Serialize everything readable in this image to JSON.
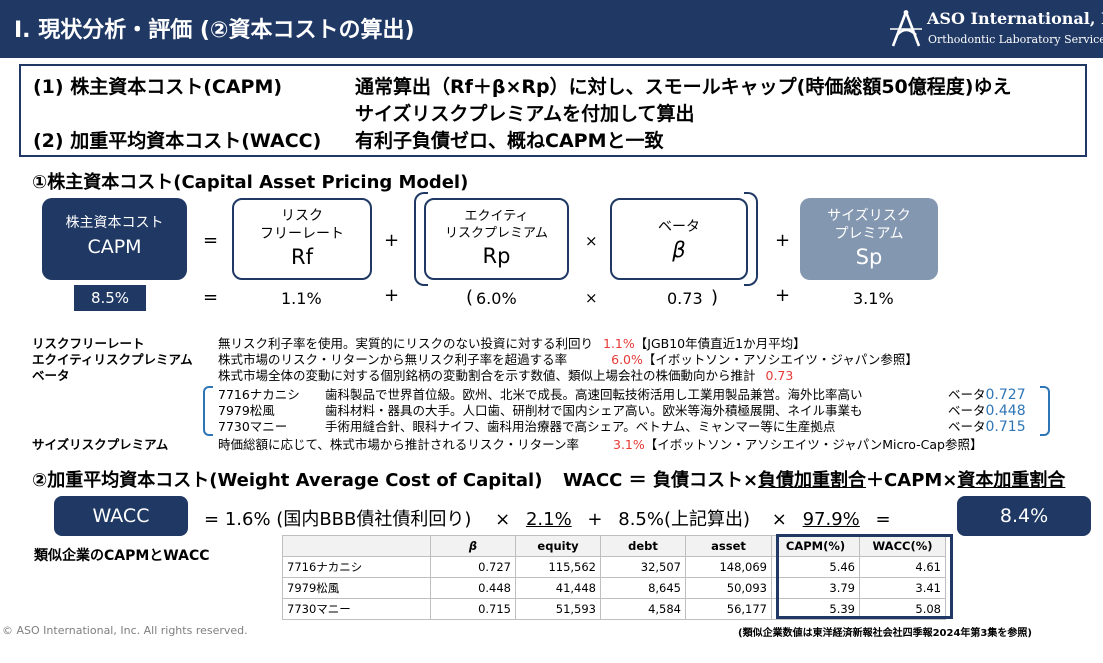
{
  "header": {
    "title": "Ⅰ. 現状分析・評価 (②資本コストの算出)",
    "logo_name": "ASO International, Inc.",
    "logo_sub": "Orthodontic Laboratory Services"
  },
  "summary": {
    "line1_label": "(1) 株主資本コスト(CAPM)",
    "line1_text": "通常算出（Rf＋β×Rp）に対し、スモールキャップ(時価総額50億程度)ゆえ",
    "line1_cont": "サイズリスクプレミアムを付加して算出",
    "line2_label": "(2) 加重平均資本コスト(WACC)",
    "line2_text": "有利子負債ゼロ、概ねCAPMと一致"
  },
  "capm": {
    "section_title": "①株主資本コスト(Capital Asset Pricing Model)",
    "box_capm_line1": "株主資本コスト",
    "box_capm_line2": "CAPM",
    "box_rf_line1": "リスク",
    "box_rf_line2": "フリーレート",
    "box_rf_symbol": "Rf",
    "box_rp_line1": "エクイティ",
    "box_rp_line2": "リスクプレミアム",
    "box_rp_symbol": "Rp",
    "box_beta_line1": "ベータ",
    "box_beta_symbol": "β",
    "box_sp_line1": "サイズリスク",
    "box_sp_line2": "プレミアム",
    "box_sp_symbol": "Sp",
    "op_eq": "=",
    "op_plus": "+",
    "op_times": "×",
    "val_capm": "8.5%",
    "val_rf": "1.1%",
    "val_rp": "6.0%",
    "val_beta": "0.73",
    "val_sp": "3.1%"
  },
  "definitions": {
    "rf_term": "リスクフリーレート",
    "rf_desc": "無リスク利子率を使用。実質的にリスクのない投資に対する利回り",
    "rf_value": "1.1%",
    "rf_source": "【JGB10年債直近1か月平均】",
    "rp_term": "エクイティリスクプレミアム",
    "rp_desc": "株式市場のリスク・リターンから無リスク利子率を超過する率",
    "rp_value": "6.0%",
    "rp_source": "【イボットソン・アソシエイツ・ジャパン参照】",
    "beta_term": "ベータ",
    "beta_desc": "株式市場全体の変動に対する個別銘柄の変動割合を示す数値、類似上場会社の株価動向から推計",
    "beta_value": "0.73",
    "peers": [
      {
        "name": "7716ナカニシ",
        "desc": "歯科製品で世界首位級。欧州、北米で成長。高速回転技術活用し工業用製品兼営。海外比率高い",
        "beta_label": "ベータ",
        "beta": "0.727"
      },
      {
        "name": "7979松風",
        "desc": "歯科材料・器具の大手。人口歯、研削材で国内シェア高い。欧米等海外積極展開、ネイル事業も",
        "beta_label": "ベータ",
        "beta": "0.448"
      },
      {
        "name": "7730マニー",
        "desc": "手術用縫合針、眼科ナイフ、歯科用治療器で高シェア。ベトナム、ミャンマー等に生産拠点",
        "beta_label": "ベータ",
        "beta": "0.715"
      }
    ],
    "sp_term": "サイズリスクプレミアム",
    "sp_desc": "時価総額に応じて、株式市場から推計されるリスク・リターン率",
    "sp_value": "3.1%",
    "sp_source": "【イボットソン・アソシエイツ・ジャパンMicro-Cap参照】"
  },
  "wacc": {
    "section_title": "②加重平均資本コスト(Weight Average Cost of Capital)",
    "formula_label": "WACC ＝",
    "formula_debt_cost": "負債コスト",
    "formula_x1": "×",
    "formula_debt_weight": "負債加重割合",
    "formula_plus": "＋",
    "formula_capm": "CAPM",
    "formula_x2": "×",
    "formula_equity_weight": "資本加重割合",
    "pill_label": "WACC",
    "eq1": "=",
    "debt_cost": "1.6%",
    "debt_note": "(国内BBB債社債利回り)",
    "times1": "×",
    "debt_weight": "2.1%",
    "plus": "+",
    "capm_value": "8.5%(上記算出)",
    "times2": "×",
    "equity_weight": "97.9%",
    "eq2": "=",
    "result": "8.4%"
  },
  "peer_table": {
    "title": "類似企業のCAPMとWACC",
    "columns": [
      "",
      "β",
      "equity",
      "debt",
      "asset",
      "CAPM(%)",
      "WACC(%)"
    ],
    "rows": [
      [
        "7716ナカニシ",
        "0.727",
        "115,562",
        "32,507",
        "148,069",
        "5.46",
        "4.61"
      ],
      [
        "7979松風",
        "0.448",
        "41,448",
        "8,645",
        "50,093",
        "3.79",
        "3.41"
      ],
      [
        "7730マニー",
        "0.715",
        "51,593",
        "4,584",
        "56,177",
        "5.39",
        "5.08"
      ]
    ]
  },
  "footer": {
    "copyright": "© ASO International, Inc. All rights reserved.",
    "source": "(類似企業数値は東洋経済新報社会社四季報2024年第3集を参照)"
  },
  "colors": {
    "navy": "#1f3864",
    "slate": "#8497b0",
    "red": "#e53935",
    "blue": "#2e75b6"
  }
}
